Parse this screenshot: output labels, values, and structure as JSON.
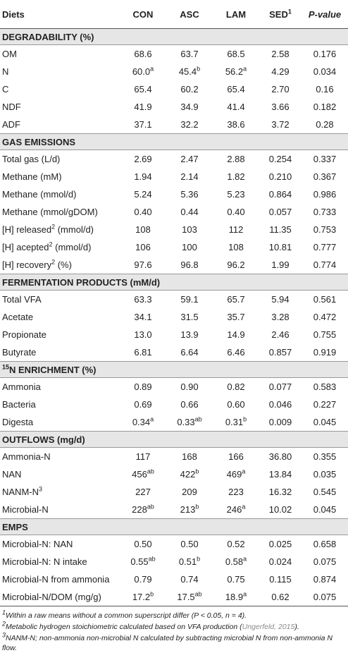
{
  "header": {
    "diets": "Diets",
    "con": "CON",
    "asc": "ASC",
    "lam": "LAM",
    "sed": "SED",
    "sed_sup": "1",
    "p_value": "P-value"
  },
  "sections": [
    {
      "title": "DEGRADABILITY (%)",
      "title_sup": "",
      "rows": [
        {
          "label": "OM",
          "label_sup": "",
          "label_suffix": "",
          "con": "68.6",
          "con_sup": "",
          "asc": "63.7",
          "asc_sup": "",
          "lam": "68.5",
          "lam_sup": "",
          "sed": "2.58",
          "p": "0.176"
        },
        {
          "label": "N",
          "label_sup": "",
          "label_suffix": "",
          "con": "60.0",
          "con_sup": "a",
          "asc": "45.4",
          "asc_sup": "b",
          "lam": "56.2",
          "lam_sup": "a",
          "sed": "4.29",
          "p": "0.034"
        },
        {
          "label": "C",
          "label_sup": "",
          "label_suffix": "",
          "con": "65.4",
          "con_sup": "",
          "asc": "60.2",
          "asc_sup": "",
          "lam": "65.4",
          "lam_sup": "",
          "sed": "2.70",
          "p": "0.16"
        },
        {
          "label": "NDF",
          "label_sup": "",
          "label_suffix": "",
          "con": "41.9",
          "con_sup": "",
          "asc": "34.9",
          "asc_sup": "",
          "lam": "41.4",
          "lam_sup": "",
          "sed": "3.66",
          "p": "0.182"
        },
        {
          "label": "ADF",
          "label_sup": "",
          "label_suffix": "",
          "con": "37.1",
          "con_sup": "",
          "asc": "32.2",
          "asc_sup": "",
          "lam": "38.6",
          "lam_sup": "",
          "sed": "3.72",
          "p": "0.28"
        }
      ]
    },
    {
      "title": "GAS EMISSIONS",
      "title_sup": "",
      "rows": [
        {
          "label": "Total gas (L/d)",
          "label_sup": "",
          "label_suffix": "",
          "con": "2.69",
          "con_sup": "",
          "asc": "2.47",
          "asc_sup": "",
          "lam": "2.88",
          "lam_sup": "",
          "sed": "0.254",
          "p": "0.337"
        },
        {
          "label": "Methane (mM)",
          "label_sup": "",
          "label_suffix": "",
          "con": "1.94",
          "con_sup": "",
          "asc": "2.14",
          "asc_sup": "",
          "lam": "1.82",
          "lam_sup": "",
          "sed": "0.210",
          "p": "0.367"
        },
        {
          "label": "Methane (mmol/d)",
          "label_sup": "",
          "label_suffix": "",
          "con": "5.24",
          "con_sup": "",
          "asc": "5.36",
          "asc_sup": "",
          "lam": "5.23",
          "lam_sup": "",
          "sed": "0.864",
          "p": "0.986"
        },
        {
          "label": "Methane (mmol/gDOM)",
          "label_sup": "",
          "label_suffix": "",
          "con": "0.40",
          "con_sup": "",
          "asc": "0.44",
          "asc_sup": "",
          "lam": "0.40",
          "lam_sup": "",
          "sed": "0.057",
          "p": "0.733"
        },
        {
          "label": "[H] released",
          "label_sup": "2",
          "label_suffix": " (mmol/d)",
          "con": "108",
          "con_sup": "",
          "asc": "103",
          "asc_sup": "",
          "lam": "112",
          "lam_sup": "",
          "sed": "11.35",
          "p": "0.753"
        },
        {
          "label": "[H] acepted",
          "label_sup": "2",
          "label_suffix": " (mmol/d)",
          "con": "106",
          "con_sup": "",
          "asc": "100",
          "asc_sup": "",
          "lam": "108",
          "lam_sup": "",
          "sed": "10.81",
          "p": "0.777"
        },
        {
          "label": "[H] recovery",
          "label_sup": "2",
          "label_suffix": " (%)",
          "con": "97.6",
          "con_sup": "",
          "asc": "96.8",
          "asc_sup": "",
          "lam": "96.2",
          "lam_sup": "",
          "sed": "1.99",
          "p": "0.774"
        }
      ]
    },
    {
      "title": "FERMENTATION PRODUCTS (mM/d)",
      "title_sup": "",
      "rows": [
        {
          "label": "Total VFA",
          "label_sup": "",
          "label_suffix": "",
          "con": "63.3",
          "con_sup": "",
          "asc": "59.1",
          "asc_sup": "",
          "lam": "65.7",
          "lam_sup": "",
          "sed": "5.94",
          "p": "0.561"
        },
        {
          "label": "Acetate",
          "label_sup": "",
          "label_suffix": "",
          "con": "34.1",
          "con_sup": "",
          "asc": "31.5",
          "asc_sup": "",
          "lam": "35.7",
          "lam_sup": "",
          "sed": "3.28",
          "p": "0.472"
        },
        {
          "label": "Propionate",
          "label_sup": "",
          "label_suffix": "",
          "con": "13.0",
          "con_sup": "",
          "asc": "13.9",
          "asc_sup": "",
          "lam": "14.9",
          "lam_sup": "",
          "sed": "2.46",
          "p": "0.755"
        },
        {
          "label": "Butyrate",
          "label_sup": "",
          "label_suffix": "",
          "con": "6.81",
          "con_sup": "",
          "asc": "6.64",
          "asc_sup": "",
          "lam": "6.46",
          "lam_sup": "",
          "sed": "0.857",
          "p": "0.919"
        }
      ]
    },
    {
      "title": "N ENRICHMENT (%)",
      "title_sup": "15",
      "rows": [
        {
          "label": "Ammonia",
          "label_sup": "",
          "label_suffix": "",
          "con": "0.89",
          "con_sup": "",
          "asc": "0.90",
          "asc_sup": "",
          "lam": "0.82",
          "lam_sup": "",
          "sed": "0.077",
          "p": "0.583"
        },
        {
          "label": "Bacteria",
          "label_sup": "",
          "label_suffix": "",
          "con": "0.69",
          "con_sup": "",
          "asc": "0.66",
          "asc_sup": "",
          "lam": "0.60",
          "lam_sup": "",
          "sed": "0.046",
          "p": "0.227"
        },
        {
          "label": "Digesta",
          "label_sup": "",
          "label_suffix": "",
          "con": "0.34",
          "con_sup": "a",
          "asc": "0.33",
          "asc_sup": "ab",
          "lam": "0.31",
          "lam_sup": "b",
          "sed": "0.009",
          "p": "0.045"
        }
      ]
    },
    {
      "title": "OUTFLOWS (mg/d)",
      "title_sup": "",
      "rows": [
        {
          "label": "Ammonia-N",
          "label_sup": "",
          "label_suffix": "",
          "con": "117",
          "con_sup": "",
          "asc": "168",
          "asc_sup": "",
          "lam": "166",
          "lam_sup": "",
          "sed": "36.80",
          "p": "0.355"
        },
        {
          "label": "NAN",
          "label_sup": "",
          "label_suffix": "",
          "con": "456",
          "con_sup": "ab",
          "asc": "422",
          "asc_sup": "b",
          "lam": "469",
          "lam_sup": "a",
          "sed": "13.84",
          "p": "0.035"
        },
        {
          "label": "NANM-N",
          "label_sup": "3",
          "label_suffix": "",
          "con": "227",
          "con_sup": "",
          "asc": "209",
          "asc_sup": "",
          "lam": "223",
          "lam_sup": "",
          "sed": "16.32",
          "p": "0.545"
        },
        {
          "label": "Microbial-N",
          "label_sup": "",
          "label_suffix": "",
          "con": "228",
          "con_sup": "ab",
          "asc": "213",
          "asc_sup": "b",
          "lam": "246",
          "lam_sup": "a",
          "sed": "10.02",
          "p": "0.045"
        }
      ]
    },
    {
      "title": "EMPS",
      "title_sup": "",
      "rows": [
        {
          "label": "Microbial-N: NAN",
          "label_sup": "",
          "label_suffix": "",
          "con": "0.50",
          "con_sup": "",
          "asc": "0.50",
          "asc_sup": "",
          "lam": "0.52",
          "lam_sup": "",
          "sed": "0.025",
          "p": "0.658"
        },
        {
          "label": "Microbial-N: N intake",
          "label_sup": "",
          "label_suffix": "",
          "con": "0.55",
          "con_sup": "ab",
          "asc": "0.51",
          "asc_sup": "b",
          "lam": "0.58",
          "lam_sup": "a",
          "sed": "0.024",
          "p": "0.075"
        },
        {
          "label": "Microbial-N from ammonia",
          "label_sup": "",
          "label_suffix": "",
          "con": "0.79",
          "con_sup": "",
          "asc": "0.74",
          "asc_sup": "",
          "lam": "0.75",
          "lam_sup": "",
          "sed": "0.115",
          "p": "0.874"
        },
        {
          "label": "Microbial-N/DOM (mg/g)",
          "label_sup": "",
          "label_suffix": "",
          "con": "17.2",
          "con_sup": "b",
          "asc": "17.5",
          "asc_sup": "ab",
          "lam": "18.9",
          "lam_sup": "a",
          "sed": "0.62",
          "p": "0.075"
        }
      ]
    }
  ],
  "footnotes": {
    "f1_sup": "1",
    "f1_text": "Within a raw means without a common superscript differ (P < 0.05, n = 4).",
    "f2_sup": "2",
    "f2_text": "Metabolic hydrogen stoichiometric calculated based on VFA production (",
    "f2_cite": "Ungerfeld, 2015",
    "f2_end": ").",
    "f3_sup": "3",
    "f3_text": "NANM-N; non-ammonia non-microbial N calculated by subtracting microbial N from non-ammonia N flow."
  }
}
